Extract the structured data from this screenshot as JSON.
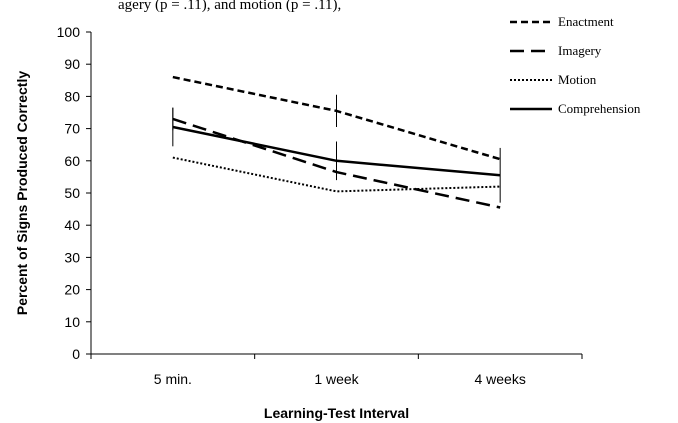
{
  "caption_fragment": "agery (p = .11), and motion (p = .11),",
  "chart_data": {
    "type": "line",
    "title": "",
    "xlabel": "Learning-Test Interval",
    "ylabel": "Percent of Signs Produced Correctly",
    "categories": [
      "5 min.",
      "1 week",
      "4 weeks"
    ],
    "ylim": [
      0,
      100
    ],
    "yticks": [
      0,
      10,
      20,
      30,
      40,
      50,
      60,
      70,
      80,
      90,
      100
    ],
    "grid": false,
    "legend": "top-right",
    "series": [
      {
        "name": "Enactment",
        "values": [
          86,
          75.5,
          60.5
        ],
        "err": [
          null,
          5,
          null
        ],
        "style": "short-dash"
      },
      {
        "name": "Imagery",
        "values": [
          73,
          56.5,
          45.5
        ],
        "err": [
          3.5,
          null,
          null
        ],
        "style": "long-dash"
      },
      {
        "name": "Motion",
        "values": [
          61,
          50.5,
          52
        ],
        "err": [
          null,
          null,
          null
        ],
        "style": "dotted"
      },
      {
        "name": "Comprehension",
        "values": [
          70.5,
          60,
          55.5
        ],
        "err": [
          6,
          6,
          8.5
        ],
        "style": "solid"
      }
    ]
  }
}
